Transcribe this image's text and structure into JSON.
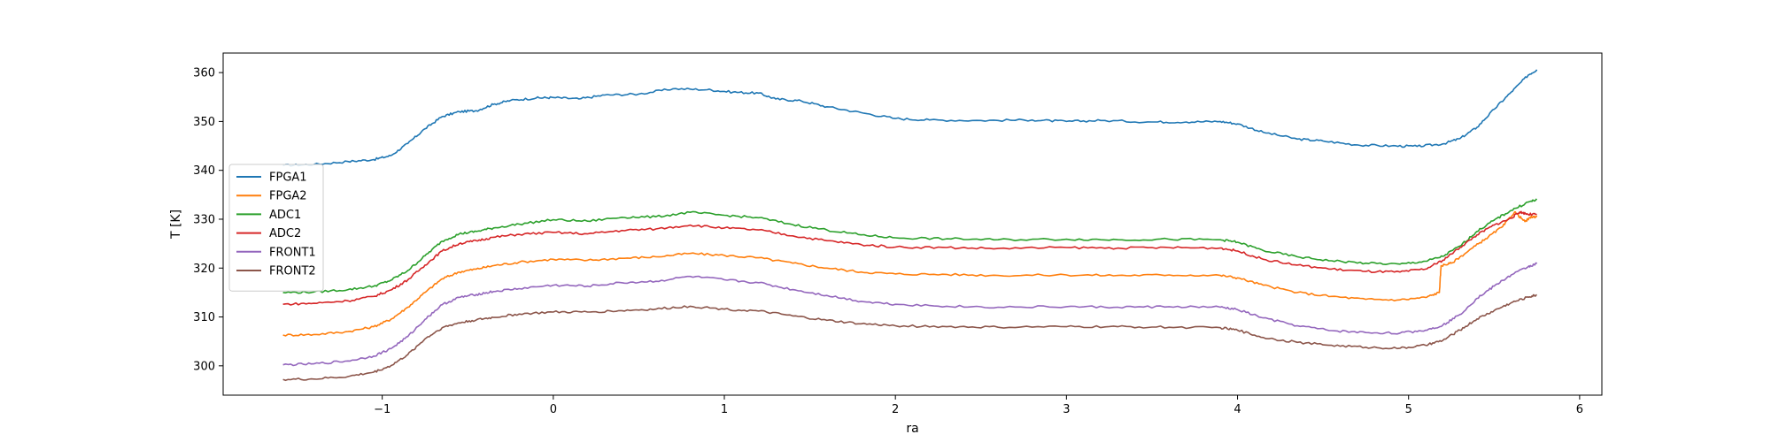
{
  "chart_data": {
    "type": "line",
    "title": "",
    "xlabel": "ra",
    "ylabel": "T [K]",
    "xlim": [
      -1.93,
      6.13
    ],
    "ylim": [
      294,
      364
    ],
    "xticks": [
      -1,
      0,
      1,
      2,
      3,
      4,
      5,
      6
    ],
    "yticks": [
      300,
      310,
      320,
      330,
      340,
      350,
      360
    ],
    "grid": false,
    "legend_position": "center-left",
    "series": [
      {
        "name": "FPGA1",
        "color": "#1f77b4",
        "points": [
          [
            -1.58,
            341.0
          ],
          [
            -1.4,
            341.2
          ],
          [
            -1.2,
            341.8
          ],
          [
            -1.05,
            342.2
          ],
          [
            -0.95,
            343.0
          ],
          [
            -0.85,
            345.5
          ],
          [
            -0.75,
            348.5
          ],
          [
            -0.65,
            351.0
          ],
          [
            -0.55,
            352.0
          ],
          [
            -0.45,
            352.2
          ],
          [
            -0.35,
            353.5
          ],
          [
            -0.25,
            354.3
          ],
          [
            -0.1,
            354.8
          ],
          [
            0.0,
            354.9
          ],
          [
            0.15,
            354.6
          ],
          [
            0.3,
            355.4
          ],
          [
            0.5,
            355.6
          ],
          [
            0.7,
            356.7
          ],
          [
            0.9,
            356.5
          ],
          [
            1.05,
            356.0
          ],
          [
            1.2,
            355.8
          ],
          [
            1.3,
            354.6
          ],
          [
            1.45,
            354.2
          ],
          [
            1.6,
            353.0
          ],
          [
            1.8,
            351.8
          ],
          [
            2.0,
            350.6
          ],
          [
            2.2,
            350.3
          ],
          [
            2.5,
            350.2
          ],
          [
            2.8,
            350.3
          ],
          [
            3.0,
            350.0
          ],
          [
            3.2,
            350.2
          ],
          [
            3.5,
            349.9
          ],
          [
            3.7,
            349.9
          ],
          [
            3.9,
            350.0
          ],
          [
            4.0,
            349.5
          ],
          [
            4.15,
            347.8
          ],
          [
            4.35,
            346.4
          ],
          [
            4.5,
            346.0
          ],
          [
            4.7,
            345.2
          ],
          [
            4.9,
            345.0
          ],
          [
            5.05,
            344.9
          ],
          [
            5.2,
            345.4
          ],
          [
            5.3,
            346.5
          ],
          [
            5.4,
            348.8
          ],
          [
            5.5,
            352.5
          ],
          [
            5.6,
            356.0
          ],
          [
            5.7,
            359.5
          ],
          [
            5.75,
            360.6
          ]
        ]
      },
      {
        "name": "FPGA2",
        "color": "#ff7f0e",
        "points": [
          [
            -1.58,
            306.3
          ],
          [
            -1.4,
            306.4
          ],
          [
            -1.2,
            307.0
          ],
          [
            -1.05,
            308.0
          ],
          [
            -0.95,
            309.5
          ],
          [
            -0.85,
            312.0
          ],
          [
            -0.75,
            315.0
          ],
          [
            -0.65,
            317.8
          ],
          [
            -0.55,
            319.2
          ],
          [
            -0.45,
            319.8
          ],
          [
            -0.35,
            320.5
          ],
          [
            -0.2,
            321.2
          ],
          [
            0.0,
            321.8
          ],
          [
            0.2,
            321.6
          ],
          [
            0.4,
            322.0
          ],
          [
            0.6,
            322.3
          ],
          [
            0.8,
            323.0
          ],
          [
            1.0,
            322.6
          ],
          [
            1.2,
            322.1
          ],
          [
            1.4,
            321.0
          ],
          [
            1.6,
            320.0
          ],
          [
            1.8,
            319.2
          ],
          [
            2.0,
            318.8
          ],
          [
            2.3,
            318.7
          ],
          [
            2.6,
            318.5
          ],
          [
            3.0,
            318.6
          ],
          [
            3.3,
            318.5
          ],
          [
            3.6,
            318.6
          ],
          [
            3.9,
            318.5
          ],
          [
            4.0,
            318.0
          ],
          [
            4.15,
            316.5
          ],
          [
            4.35,
            315.0
          ],
          [
            4.55,
            314.2
          ],
          [
            4.75,
            313.6
          ],
          [
            4.95,
            313.5
          ],
          [
            5.1,
            314.0
          ],
          [
            5.18,
            315.0
          ],
          [
            5.19,
            320.5
          ],
          [
            5.25,
            321.0
          ],
          [
            5.35,
            323.5
          ],
          [
            5.45,
            326.0
          ],
          [
            5.55,
            328.5
          ],
          [
            5.62,
            331.5
          ],
          [
            5.68,
            329.5
          ],
          [
            5.72,
            330.5
          ],
          [
            5.75,
            330.5
          ]
        ]
      },
      {
        "name": "ADC1",
        "color": "#2ca02c",
        "points": [
          [
            -1.58,
            315.0
          ],
          [
            -1.4,
            315.1
          ],
          [
            -1.2,
            315.6
          ],
          [
            -1.05,
            316.3
          ],
          [
            -0.95,
            317.5
          ],
          [
            -0.85,
            319.5
          ],
          [
            -0.75,
            322.5
          ],
          [
            -0.65,
            325.5
          ],
          [
            -0.55,
            327.0
          ],
          [
            -0.45,
            327.5
          ],
          [
            -0.35,
            328.2
          ],
          [
            -0.2,
            329.0
          ],
          [
            0.0,
            329.9
          ],
          [
            0.2,
            329.6
          ],
          [
            0.4,
            330.4
          ],
          [
            0.6,
            330.5
          ],
          [
            0.8,
            331.4
          ],
          [
            1.0,
            330.8
          ],
          [
            1.2,
            330.3
          ],
          [
            1.4,
            328.9
          ],
          [
            1.6,
            327.8
          ],
          [
            1.8,
            326.8
          ],
          [
            2.0,
            326.2
          ],
          [
            2.3,
            326.0
          ],
          [
            2.6,
            325.8
          ],
          [
            3.0,
            325.9
          ],
          [
            3.3,
            325.8
          ],
          [
            3.6,
            325.9
          ],
          [
            3.9,
            325.8
          ],
          [
            4.0,
            325.3
          ],
          [
            4.15,
            323.6
          ],
          [
            4.35,
            322.3
          ],
          [
            4.55,
            321.5
          ],
          [
            4.75,
            321.0
          ],
          [
            4.95,
            320.8
          ],
          [
            5.1,
            321.4
          ],
          [
            5.2,
            322.4
          ],
          [
            5.3,
            324.5
          ],
          [
            5.4,
            327.5
          ],
          [
            5.5,
            329.8
          ],
          [
            5.6,
            331.8
          ],
          [
            5.7,
            333.5
          ],
          [
            5.75,
            334.0
          ]
        ]
      },
      {
        "name": "ADC2",
        "color": "#d62728",
        "points": [
          [
            -1.58,
            312.6
          ],
          [
            -1.4,
            312.8
          ],
          [
            -1.2,
            313.3
          ],
          [
            -1.05,
            314.2
          ],
          [
            -0.95,
            315.5
          ],
          [
            -0.85,
            317.6
          ],
          [
            -0.75,
            320.6
          ],
          [
            -0.65,
            323.5
          ],
          [
            -0.55,
            325.0
          ],
          [
            -0.45,
            325.6
          ],
          [
            -0.35,
            326.3
          ],
          [
            -0.2,
            326.9
          ],
          [
            0.0,
            327.3
          ],
          [
            0.2,
            327.0
          ],
          [
            0.4,
            327.7
          ],
          [
            0.6,
            328.0
          ],
          [
            0.8,
            328.8
          ],
          [
            1.0,
            328.2
          ],
          [
            1.2,
            327.8
          ],
          [
            1.4,
            326.6
          ],
          [
            1.6,
            325.6
          ],
          [
            1.8,
            324.8
          ],
          [
            2.0,
            324.3
          ],
          [
            2.3,
            324.2
          ],
          [
            2.6,
            324.0
          ],
          [
            3.0,
            324.2
          ],
          [
            3.3,
            324.1
          ],
          [
            3.6,
            324.2
          ],
          [
            3.9,
            324.1
          ],
          [
            4.0,
            323.5
          ],
          [
            4.15,
            321.8
          ],
          [
            4.35,
            320.6
          ],
          [
            4.55,
            319.8
          ],
          [
            4.75,
            319.3
          ],
          [
            4.95,
            319.2
          ],
          [
            5.1,
            319.8
          ],
          [
            5.2,
            321.6
          ],
          [
            5.3,
            324.2
          ],
          [
            5.4,
            326.8
          ],
          [
            5.5,
            328.8
          ],
          [
            5.6,
            330.2
          ],
          [
            5.65,
            331.5
          ],
          [
            5.7,
            331.0
          ],
          [
            5.75,
            331.0
          ]
        ]
      },
      {
        "name": "FRONT1",
        "color": "#9467bd",
        "points": [
          [
            -1.58,
            300.2
          ],
          [
            -1.4,
            300.4
          ],
          [
            -1.2,
            301.0
          ],
          [
            -1.05,
            302.0
          ],
          [
            -0.95,
            303.5
          ],
          [
            -0.85,
            306.0
          ],
          [
            -0.75,
            309.5
          ],
          [
            -0.65,
            312.5
          ],
          [
            -0.55,
            314.0
          ],
          [
            -0.45,
            314.6
          ],
          [
            -0.35,
            315.2
          ],
          [
            -0.2,
            315.8
          ],
          [
            0.0,
            316.5
          ],
          [
            0.2,
            316.3
          ],
          [
            0.4,
            317.0
          ],
          [
            0.6,
            317.3
          ],
          [
            0.8,
            318.3
          ],
          [
            1.0,
            317.6
          ],
          [
            1.2,
            317.0
          ],
          [
            1.4,
            315.6
          ],
          [
            1.6,
            314.4
          ],
          [
            1.8,
            313.2
          ],
          [
            2.0,
            312.6
          ],
          [
            2.3,
            312.2
          ],
          [
            2.6,
            312.0
          ],
          [
            3.0,
            312.1
          ],
          [
            3.3,
            312.0
          ],
          [
            3.6,
            312.1
          ],
          [
            3.9,
            312.0
          ],
          [
            4.0,
            311.5
          ],
          [
            4.15,
            309.8
          ],
          [
            4.35,
            308.2
          ],
          [
            4.55,
            307.2
          ],
          [
            4.75,
            306.8
          ],
          [
            4.95,
            306.7
          ],
          [
            5.1,
            307.3
          ],
          [
            5.2,
            308.3
          ],
          [
            5.3,
            310.5
          ],
          [
            5.4,
            313.8
          ],
          [
            5.5,
            316.3
          ],
          [
            5.6,
            318.6
          ],
          [
            5.7,
            320.3
          ],
          [
            5.75,
            320.9
          ]
        ]
      },
      {
        "name": "FRONT2",
        "color": "#8c564b",
        "points": [
          [
            -1.58,
            297.2
          ],
          [
            -1.4,
            297.3
          ],
          [
            -1.2,
            297.8
          ],
          [
            -1.05,
            298.7
          ],
          [
            -0.95,
            300.0
          ],
          [
            -0.85,
            302.3
          ],
          [
            -0.75,
            305.5
          ],
          [
            -0.65,
            307.8
          ],
          [
            -0.55,
            308.8
          ],
          [
            -0.45,
            309.4
          ],
          [
            -0.35,
            309.9
          ],
          [
            -0.2,
            310.6
          ],
          [
            0.0,
            311.0
          ],
          [
            0.2,
            311.0
          ],
          [
            0.4,
            311.3
          ],
          [
            0.6,
            311.6
          ],
          [
            0.8,
            312.2
          ],
          [
            1.0,
            311.6
          ],
          [
            1.2,
            311.2
          ],
          [
            1.4,
            310.2
          ],
          [
            1.6,
            309.3
          ],
          [
            1.8,
            308.6
          ],
          [
            2.0,
            308.2
          ],
          [
            2.3,
            308.0
          ],
          [
            2.6,
            307.9
          ],
          [
            3.0,
            308.0
          ],
          [
            3.3,
            308.0
          ],
          [
            3.6,
            307.9
          ],
          [
            3.9,
            307.8
          ],
          [
            4.0,
            307.3
          ],
          [
            4.15,
            305.8
          ],
          [
            4.35,
            304.8
          ],
          [
            4.55,
            304.2
          ],
          [
            4.75,
            303.8
          ],
          [
            4.95,
            303.6
          ],
          [
            5.1,
            304.2
          ],
          [
            5.2,
            305.2
          ],
          [
            5.3,
            307.3
          ],
          [
            5.4,
            309.6
          ],
          [
            5.5,
            311.3
          ],
          [
            5.6,
            312.9
          ],
          [
            5.7,
            314.1
          ],
          [
            5.75,
            314.5
          ]
        ]
      }
    ]
  }
}
